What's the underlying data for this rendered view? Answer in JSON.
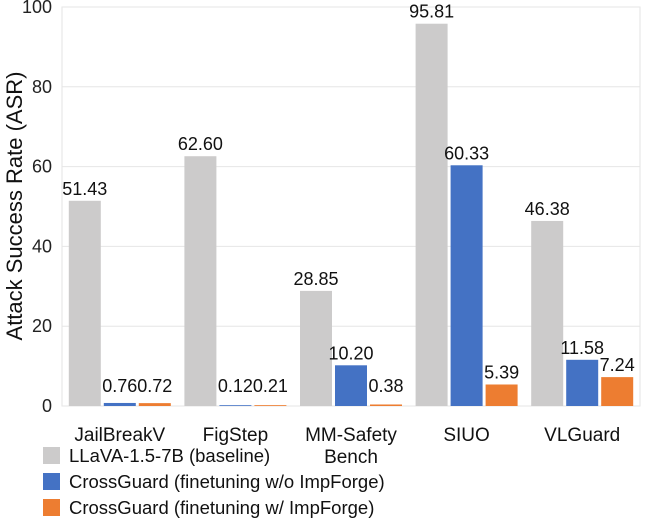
{
  "chart_data": {
    "type": "bar",
    "title": "",
    "xlabel": "",
    "ylabel": "Attack Success Rate (ASR)",
    "ylim": [
      0,
      100
    ],
    "yticks": [
      0,
      20,
      40,
      60,
      80,
      100
    ],
    "grid": true,
    "legend_position": "bottom-left",
    "categories": [
      {
        "lines": [
          "JailBreakV"
        ]
      },
      {
        "lines": [
          "FigStep"
        ]
      },
      {
        "lines": [
          "MM-Safety",
          "Bench"
        ]
      },
      {
        "lines": [
          "SIUO"
        ]
      },
      {
        "lines": [
          "VLGuard"
        ]
      }
    ],
    "series": [
      {
        "name": "LLaVA-1.5-7B (baseline)",
        "color": "#cccbcb",
        "values": [
          51.43,
          62.6,
          28.85,
          95.81,
          46.38
        ],
        "labels": [
          "51.43",
          "62.60",
          "28.85",
          "95.81",
          "46.38"
        ]
      },
      {
        "name": "CrossGuard (finetuning w/o ImpForge)",
        "color": "#4472c4",
        "values": [
          0.76,
          0.12,
          10.2,
          60.33,
          11.58
        ],
        "labels": [
          "0.76",
          "0.12",
          "10.20",
          "60.33",
          "11.58"
        ]
      },
      {
        "name": "CrossGuard (finetuning w/ ImpForge)",
        "color": "#ed7d31",
        "values": [
          0.72,
          0.21,
          0.38,
          5.39,
          7.24
        ],
        "labels": [
          "0.72",
          "0.21",
          "0.38",
          "5.39",
          "7.24"
        ]
      }
    ]
  }
}
